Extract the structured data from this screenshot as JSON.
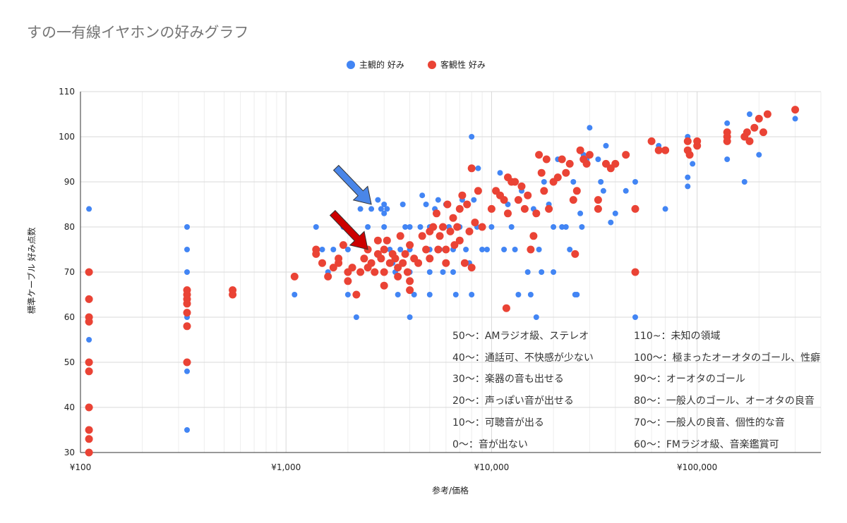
{
  "chart_data": {
    "type": "scatter",
    "title": "すの一有線イヤホンの好みグラフ",
    "xlabel": "参考/価格",
    "ylabel": "標準ケーブル 好み点数",
    "x_scale": "log",
    "xlim": [
      100,
      400000
    ],
    "ylim": [
      30,
      110
    ],
    "x_ticks": [
      100,
      1000,
      10000,
      100000
    ],
    "x_tick_labels": [
      "¥100",
      "¥1,000",
      "¥10,000",
      "¥100,000"
    ],
    "y_ticks": [
      30,
      40,
      50,
      60,
      70,
      80,
      90,
      100,
      110
    ],
    "grid": true,
    "legend_position": "top",
    "series": [
      {
        "name": "主観的 好み",
        "color": "#4285f4",
        "points": [
          [
            110,
            84
          ],
          [
            110,
            55
          ],
          [
            330,
            80
          ],
          [
            330,
            75
          ],
          [
            330,
            70
          ],
          [
            330,
            60
          ],
          [
            330,
            48
          ],
          [
            330,
            35
          ],
          [
            1100,
            65
          ],
          [
            1400,
            80
          ],
          [
            1500,
            75
          ],
          [
            1600,
            70
          ],
          [
            1700,
            75
          ],
          [
            1900,
            80
          ],
          [
            2000,
            75
          ],
          [
            2000,
            70
          ],
          [
            2000,
            65
          ],
          [
            2200,
            60
          ],
          [
            2300,
            84
          ],
          [
            2500,
            80
          ],
          [
            2500,
            75
          ],
          [
            2600,
            84
          ],
          [
            2700,
            70
          ],
          [
            2800,
            86
          ],
          [
            2900,
            84
          ],
          [
            3000,
            85
          ],
          [
            3000,
            83
          ],
          [
            3000,
            80
          ],
          [
            3100,
            84
          ],
          [
            3200,
            75
          ],
          [
            3300,
            72
          ],
          [
            3400,
            70
          ],
          [
            3500,
            65
          ],
          [
            3600,
            75
          ],
          [
            3700,
            85
          ],
          [
            3800,
            80
          ],
          [
            4000,
            80
          ],
          [
            4000,
            75
          ],
          [
            4000,
            70
          ],
          [
            4000,
            60
          ],
          [
            4200,
            65
          ],
          [
            4500,
            80
          ],
          [
            4600,
            87
          ],
          [
            4800,
            85
          ],
          [
            5000,
            80
          ],
          [
            5000,
            75
          ],
          [
            5000,
            70
          ],
          [
            5000,
            65
          ],
          [
            5300,
            84
          ],
          [
            5500,
            86
          ],
          [
            5600,
            75
          ],
          [
            5800,
            70
          ],
          [
            6000,
            85
          ],
          [
            6200,
            80
          ],
          [
            6500,
            75
          ],
          [
            6500,
            70
          ],
          [
            6700,
            65
          ],
          [
            7000,
            84
          ],
          [
            7000,
            80
          ],
          [
            7200,
            86
          ],
          [
            7500,
            75
          ],
          [
            7800,
            72
          ],
          [
            8000,
            65
          ],
          [
            8000,
            100
          ],
          [
            8200,
            86
          ],
          [
            8500,
            80
          ],
          [
            8600,
            93
          ],
          [
            9000,
            75
          ],
          [
            9500,
            75
          ],
          [
            10000,
            80
          ],
          [
            10500,
            88
          ],
          [
            11000,
            92
          ],
          [
            11500,
            75
          ],
          [
            12000,
            85
          ],
          [
            12500,
            80
          ],
          [
            13000,
            75
          ],
          [
            13500,
            65
          ],
          [
            14000,
            88
          ],
          [
            15000,
            70
          ],
          [
            15500,
            65
          ],
          [
            16000,
            84
          ],
          [
            16500,
            60
          ],
          [
            17000,
            75
          ],
          [
            17500,
            70
          ],
          [
            18000,
            90
          ],
          [
            19000,
            85
          ],
          [
            20000,
            80
          ],
          [
            20000,
            70
          ],
          [
            21000,
            95
          ],
          [
            22000,
            80
          ],
          [
            23000,
            80
          ],
          [
            24000,
            75
          ],
          [
            25000,
            90
          ],
          [
            25500,
            65
          ],
          [
            26000,
            65
          ],
          [
            27000,
            83
          ],
          [
            27500,
            80
          ],
          [
            28000,
            96
          ],
          [
            29000,
            95
          ],
          [
            30000,
            102
          ],
          [
            33000,
            95
          ],
          [
            34000,
            90
          ],
          [
            35000,
            88
          ],
          [
            36000,
            98
          ],
          [
            38000,
            81
          ],
          [
            40000,
            83
          ],
          [
            45000,
            88
          ],
          [
            50000,
            90
          ],
          [
            50000,
            60
          ],
          [
            65000,
            98
          ],
          [
            70000,
            84
          ],
          [
            90000,
            100
          ],
          [
            90000,
            91
          ],
          [
            90000,
            89
          ],
          [
            95000,
            94
          ],
          [
            140000,
            103
          ],
          [
            140000,
            95
          ],
          [
            170000,
            90
          ],
          [
            180000,
            105
          ],
          [
            200000,
            96
          ],
          [
            300000,
            104
          ]
        ]
      },
      {
        "name": "客観性 好み",
        "color": "#ea4335",
        "points": [
          [
            110,
            70
          ],
          [
            110,
            64
          ],
          [
            110,
            60
          ],
          [
            110,
            59
          ],
          [
            110,
            50
          ],
          [
            110,
            48
          ],
          [
            110,
            40
          ],
          [
            110,
            35
          ],
          [
            110,
            33
          ],
          [
            110,
            30
          ],
          [
            330,
            66
          ],
          [
            330,
            65
          ],
          [
            330,
            64
          ],
          [
            330,
            63
          ],
          [
            330,
            61
          ],
          [
            330,
            58
          ],
          [
            330,
            50
          ],
          [
            550,
            66
          ],
          [
            550,
            65
          ],
          [
            1100,
            69
          ],
          [
            1400,
            75
          ],
          [
            1400,
            74
          ],
          [
            1500,
            72
          ],
          [
            1600,
            69
          ],
          [
            1700,
            71
          ],
          [
            1800,
            72
          ],
          [
            1800,
            73
          ],
          [
            1900,
            76
          ],
          [
            2000,
            70
          ],
          [
            2000,
            68
          ],
          [
            2100,
            71
          ],
          [
            2200,
            65
          ],
          [
            2300,
            70
          ],
          [
            2400,
            73
          ],
          [
            2500,
            71
          ],
          [
            2500,
            75
          ],
          [
            2600,
            72
          ],
          [
            2700,
            70
          ],
          [
            2800,
            77
          ],
          [
            2800,
            74
          ],
          [
            2900,
            73
          ],
          [
            3000,
            75
          ],
          [
            3000,
            70
          ],
          [
            3000,
            67
          ],
          [
            3100,
            77
          ],
          [
            3200,
            72
          ],
          [
            3300,
            74
          ],
          [
            3400,
            73
          ],
          [
            3500,
            71
          ],
          [
            3500,
            69
          ],
          [
            3600,
            78
          ],
          [
            3700,
            72
          ],
          [
            3800,
            74
          ],
          [
            3900,
            70
          ],
          [
            4000,
            68
          ],
          [
            4000,
            66
          ],
          [
            4000,
            76
          ],
          [
            4200,
            73
          ],
          [
            4400,
            72
          ],
          [
            4600,
            78
          ],
          [
            4800,
            75
          ],
          [
            5000,
            79
          ],
          [
            5000,
            73
          ],
          [
            5200,
            80
          ],
          [
            5400,
            83
          ],
          [
            5500,
            75
          ],
          [
            5600,
            78
          ],
          [
            5800,
            80
          ],
          [
            6000,
            75
          ],
          [
            6000,
            72
          ],
          [
            6100,
            85
          ],
          [
            6300,
            79
          ],
          [
            6500,
            82
          ],
          [
            6600,
            76
          ],
          [
            6800,
            80
          ],
          [
            7000,
            84
          ],
          [
            7000,
            77
          ],
          [
            7200,
            87
          ],
          [
            7400,
            72
          ],
          [
            7600,
            85
          ],
          [
            7800,
            79
          ],
          [
            8000,
            93
          ],
          [
            8000,
            71
          ],
          [
            8300,
            81
          ],
          [
            8600,
            88
          ],
          [
            9000,
            80
          ],
          [
            10000,
            84
          ],
          [
            10500,
            88
          ],
          [
            11000,
            87
          ],
          [
            11500,
            86
          ],
          [
            11800,
            62
          ],
          [
            12000,
            91
          ],
          [
            12000,
            83
          ],
          [
            12500,
            90
          ],
          [
            13000,
            90
          ],
          [
            13500,
            86
          ],
          [
            14000,
            89
          ],
          [
            14500,
            84
          ],
          [
            15000,
            87
          ],
          [
            15500,
            75
          ],
          [
            16000,
            78
          ],
          [
            16500,
            83
          ],
          [
            17000,
            96
          ],
          [
            17500,
            92
          ],
          [
            18000,
            88
          ],
          [
            18500,
            95
          ],
          [
            19000,
            84
          ],
          [
            20000,
            90
          ],
          [
            21000,
            91
          ],
          [
            22000,
            95
          ],
          [
            23000,
            92
          ],
          [
            24000,
            94
          ],
          [
            25000,
            86
          ],
          [
            25500,
            74
          ],
          [
            26000,
            88
          ],
          [
            27000,
            97
          ],
          [
            28000,
            95
          ],
          [
            29000,
            94
          ],
          [
            30000,
            96
          ],
          [
            33000,
            86
          ],
          [
            33000,
            84
          ],
          [
            36000,
            94
          ],
          [
            38000,
            93
          ],
          [
            40000,
            94
          ],
          [
            45000,
            96
          ],
          [
            50000,
            84
          ],
          [
            50000,
            70
          ],
          [
            60000,
            99
          ],
          [
            65000,
            97
          ],
          [
            70000,
            97
          ],
          [
            90000,
            99
          ],
          [
            90000,
            97
          ],
          [
            92000,
            96
          ],
          [
            100000,
            98
          ],
          [
            100000,
            99
          ],
          [
            140000,
            101
          ],
          [
            140000,
            100
          ],
          [
            140000,
            99
          ],
          [
            170000,
            100
          ],
          [
            175000,
            101
          ],
          [
            180000,
            99
          ],
          [
            190000,
            102
          ],
          [
            200000,
            104
          ],
          [
            210000,
            101
          ],
          [
            220000,
            105
          ],
          [
            300000,
            106
          ]
        ]
      }
    ],
    "annotations": {
      "left": [
        "50〜：AMラジオ級、ステレオ",
        "40〜：通話可、不快感が少ない",
        "30〜：楽器の音も出せる",
        "20〜：声っぽい音が出せる",
        "10〜：可聴音が出る",
        "0〜：音が出ない"
      ],
      "right": [
        "110~：未知の領域",
        "100〜：極まったオーオタのゴール、性癖",
        "90〜：オーオタのゴール",
        "80〜：一般人のゴール、オーオタの良音",
        "70〜：一般人の良音、個性的な音",
        "60〜：FMラジオ級、音楽鑑賞可"
      ]
    },
    "arrows": [
      {
        "color": "#4a86e8",
        "target": [
          2600,
          85
        ]
      },
      {
        "color": "#cc0000",
        "target": [
          2500,
          75
        ]
      }
    ]
  }
}
